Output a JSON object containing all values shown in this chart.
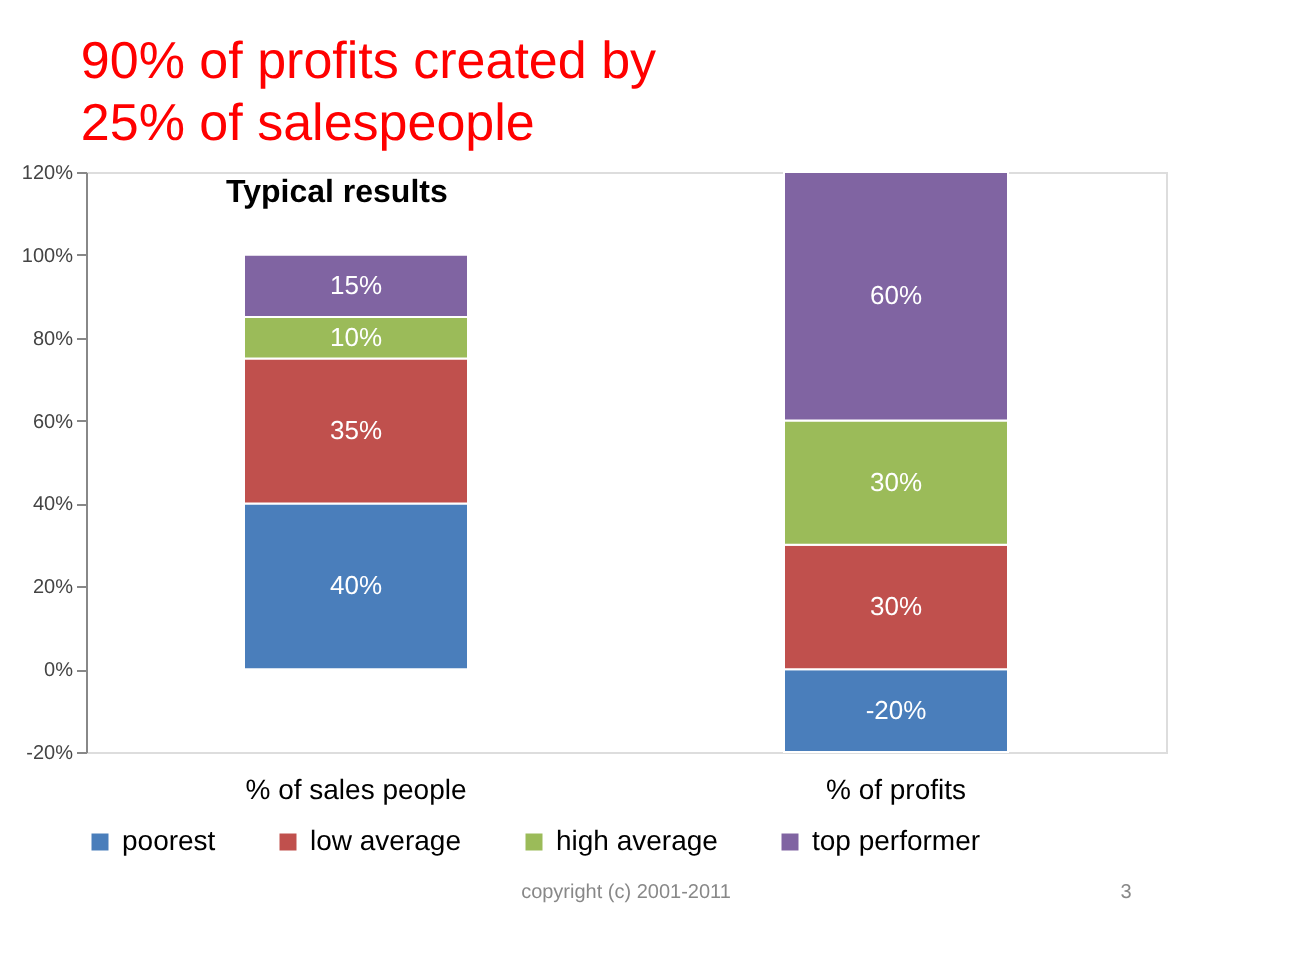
{
  "chart_data": {
    "type": "bar",
    "stacked": true,
    "title": "90% of profits created by\n25% of salespeople",
    "subtitle": "Typical results",
    "categories": [
      "% of sales people",
      "% of profits"
    ],
    "series": [
      {
        "name": "poorest",
        "color": "#4a7ebb",
        "values": [
          40,
          -20
        ],
        "value_labels": [
          "40%",
          "-20%"
        ]
      },
      {
        "name": "low average",
        "color": "#c0504d",
        "values": [
          35,
          30
        ],
        "value_labels": [
          "35%",
          "30%"
        ]
      },
      {
        "name": "high average",
        "color": "#9bbb59",
        "values": [
          10,
          30
        ],
        "value_labels": [
          "10%",
          "30%"
        ]
      },
      {
        "name": "top performer",
        "color": "#8064a2",
        "values": [
          15,
          60
        ],
        "value_labels": [
          "15%",
          "60%"
        ]
      }
    ],
    "ylim": [
      -20,
      120
    ],
    "yticks": [
      {
        "value": -20,
        "label": "-20%"
      },
      {
        "value": 0,
        "label": "0%"
      },
      {
        "value": 20,
        "label": "20%"
      },
      {
        "value": 40,
        "label": "40%"
      },
      {
        "value": 60,
        "label": "60%"
      },
      {
        "value": 80,
        "label": "80%"
      },
      {
        "value": 100,
        "label": "100%"
      },
      {
        "value": 120,
        "label": "120%"
      }
    ],
    "grid": false,
    "legend": "bottom",
    "annotations": [
      "copyright (c) 2001-2011",
      "3"
    ]
  }
}
